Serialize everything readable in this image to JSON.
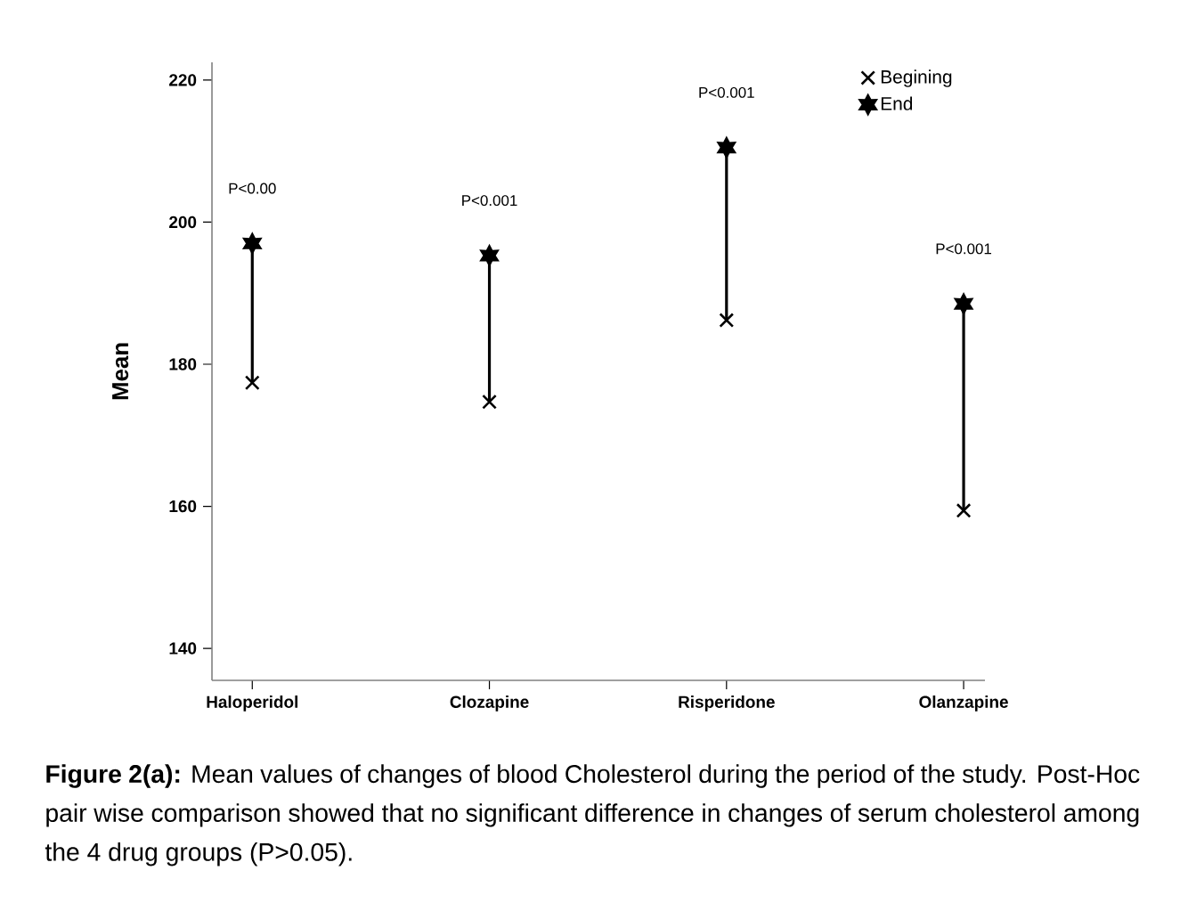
{
  "chart_data": {
    "type": "scatter",
    "ylabel": "Mean",
    "categories": [
      "Haloperidol",
      "Clozapine",
      "Risperidone",
      "Olanzapine"
    ],
    "series": [
      {
        "name": "Begining",
        "color": "#000000",
        "marker": "cross",
        "values": [
          177.4,
          174.7,
          186.2,
          159.4
        ]
      },
      {
        "name": "End",
        "color": "#000000",
        "values": [
          197,
          195.3,
          210.5,
          188.5
        ]
      }
    ],
    "ylim": [
      135.5,
      222.5
    ],
    "yticks": [
      140,
      160,
      180,
      200,
      220
    ],
    "legend": "top right",
    "annotations": [
      "P<0.00",
      "P<0.001",
      "P<0.001",
      "P<0.001",
      "**Figure 2(a):** Mean values of changes of blood Cholesterol during the period of the study. Post-Hoc pair wise comparison showed that no significant difference in changes of serum cholesterol among the 4 drug groups (P>0.05)."
    ]
  }
}
